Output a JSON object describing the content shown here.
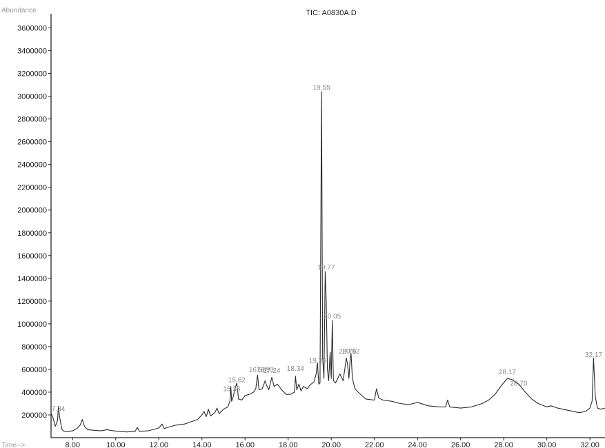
{
  "chart_data": {
    "type": "line",
    "title": "TIC: A0830A.D",
    "ylabel": "Abundance",
    "xlabel": "Time-->",
    "xlim": [
      7.0,
      32.7
    ],
    "ylim": [
      0,
      3700000
    ],
    "x_ticks": [
      "8.00",
      "10.00",
      "12.00",
      "14.00",
      "16.00",
      "18.00",
      "20.00",
      "22.00",
      "24.00",
      "26.00",
      "28.00",
      "30.00",
      "32.00"
    ],
    "y_ticks": [
      "200000",
      "400000",
      "600000",
      "800000",
      "1000000",
      "1200000",
      "1400000",
      "1600000",
      "1800000",
      "2000000",
      "2200000",
      "2400000",
      "2600000",
      "2800000",
      "3000000",
      "3200000",
      "3400000",
      "3600000"
    ],
    "peak_labels": [
      {
        "text": "7.34",
        "x": 7.34,
        "y": 215000
      },
      {
        "text": "15.38",
        "x": 15.38,
        "y": 390000
      },
      {
        "text": "15.62",
        "x": 15.62,
        "y": 470000
      },
      {
        "text": "16.58",
        "x": 16.58,
        "y": 560000
      },
      {
        "text": "16.93",
        "x": 16.93,
        "y": 560000
      },
      {
        "text": "17.24",
        "x": 17.24,
        "y": 550000
      },
      {
        "text": "18.34",
        "x": 18.34,
        "y": 570000
      },
      {
        "text": "19.36",
        "x": 19.36,
        "y": 640000
      },
      {
        "text": "19.55",
        "x": 19.55,
        "y": 3040000
      },
      {
        "text": "19.77",
        "x": 19.77,
        "y": 1460000
      },
      {
        "text": "20.05",
        "x": 20.05,
        "y": 1030000
      },
      {
        "text": "20.76",
        "x": 20.76,
        "y": 720000
      },
      {
        "text": "20.92",
        "x": 20.92,
        "y": 720000
      },
      {
        "text": "28.17",
        "x": 28.17,
        "y": 540000
      },
      {
        "text": "28.70",
        "x": 28.7,
        "y": 440000
      },
      {
        "text": "32.17",
        "x": 32.17,
        "y": 690000
      }
    ],
    "series": [
      {
        "x": [
          7.0,
          7.1,
          7.2,
          7.3,
          7.34,
          7.4,
          7.5,
          7.6,
          7.8,
          8.0,
          8.2,
          8.35,
          8.45,
          8.55,
          8.7,
          9.0,
          9.3,
          9.6,
          9.9,
          10.2,
          10.5,
          10.9,
          11.0,
          11.1,
          11.5,
          12.0,
          12.15,
          12.25,
          12.4,
          12.8,
          13.2,
          13.5,
          13.8,
          14.0,
          14.1,
          14.2,
          14.3,
          14.4,
          14.6,
          14.7,
          14.8,
          15.0,
          15.2,
          15.3,
          15.34,
          15.38,
          15.45,
          15.55,
          15.62,
          15.7,
          15.85,
          16.0,
          16.2,
          16.4,
          16.5,
          16.58,
          16.65,
          16.8,
          16.93,
          17.0,
          17.1,
          17.24,
          17.35,
          17.5,
          17.7,
          17.9,
          18.1,
          18.3,
          18.34,
          18.4,
          18.5,
          18.6,
          18.7,
          18.9,
          19.0,
          19.2,
          19.3,
          19.36,
          19.42,
          19.48,
          19.55,
          19.6,
          19.66,
          19.72,
          19.77,
          19.82,
          19.88,
          19.95,
          20.0,
          20.05,
          20.1,
          20.2,
          20.3,
          20.4,
          20.55,
          20.7,
          20.76,
          20.82,
          20.88,
          20.92,
          20.98,
          21.1,
          21.3,
          21.6,
          22.0,
          22.1,
          22.2,
          22.4,
          22.8,
          23.2,
          23.6,
          24.0,
          24.5,
          25.0,
          25.3,
          25.4,
          25.5,
          26.0,
          26.5,
          27.0,
          27.3,
          27.6,
          27.9,
          28.17,
          28.4,
          28.7,
          29.0,
          29.3,
          29.6,
          30.0,
          30.2,
          30.5,
          31.0,
          31.5,
          31.8,
          32.0,
          32.1,
          32.17,
          32.25,
          32.35,
          32.5,
          32.7
        ],
        "values": [
          215000,
          170000,
          100000,
          150000,
          275000,
          180000,
          75000,
          55000,
          55000,
          60000,
          80000,
          110000,
          160000,
          100000,
          70000,
          65000,
          60000,
          70000,
          60000,
          55000,
          50000,
          55000,
          90000,
          55000,
          60000,
          85000,
          120000,
          80000,
          90000,
          110000,
          120000,
          140000,
          160000,
          200000,
          230000,
          185000,
          250000,
          190000,
          220000,
          260000,
          210000,
          250000,
          270000,
          320000,
          450000,
          320000,
          360000,
          440000,
          480000,
          340000,
          330000,
          370000,
          380000,
          400000,
          430000,
          550000,
          420000,
          430000,
          500000,
          460000,
          420000,
          530000,
          450000,
          470000,
          420000,
          380000,
          380000,
          400000,
          540000,
          420000,
          470000,
          410000,
          450000,
          430000,
          460000,
          490000,
          560000,
          660000,
          470000,
          480000,
          3040000,
          700000,
          520000,
          1460000,
          1180000,
          600000,
          500000,
          750000,
          520000,
          1030000,
          500000,
          480000,
          520000,
          560000,
          500000,
          700000,
          640000,
          520000,
          700000,
          740000,
          520000,
          430000,
          390000,
          340000,
          330000,
          430000,
          350000,
          330000,
          320000,
          300000,
          290000,
          310000,
          280000,
          270000,
          270000,
          330000,
          270000,
          260000,
          270000,
          300000,
          330000,
          380000,
          460000,
          520000,
          510000,
          470000,
          400000,
          340000,
          300000,
          270000,
          280000,
          260000,
          240000,
          220000,
          230000,
          260000,
          320000,
          700000,
          360000,
          260000,
          250000,
          260000
        ]
      }
    ]
  }
}
